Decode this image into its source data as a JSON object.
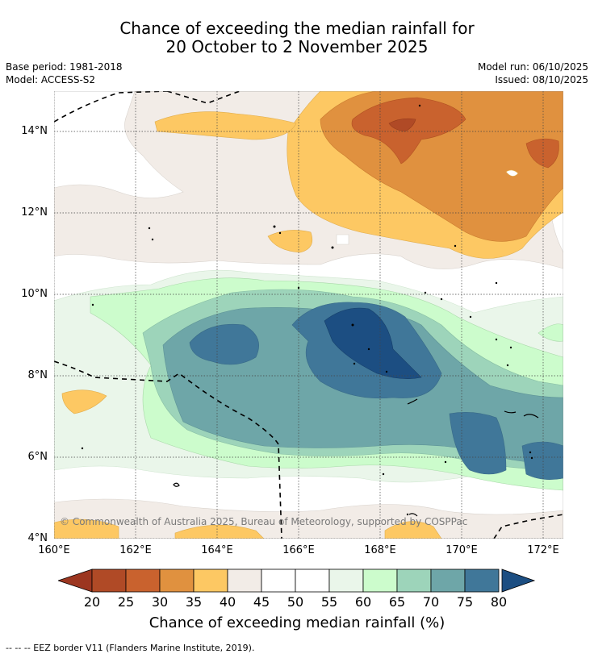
{
  "title_line1": "Chance of exceeding the median rainfall for",
  "title_line2": "20 October to 2 November 2025",
  "base_period": "Base period: 1981-2018",
  "model": "Model: ACCESS-S2",
  "model_run": "Model run: 06/10/2025",
  "issued": "Issued: 08/10/2025",
  "copyright": "© Commonwealth of Australia 2025, Bureau of Meteorology, supported by COSPPac",
  "footer": "--  --  -- EEZ border V11 (Flanders Marine Institute, 2019).",
  "axes": {
    "x_ticks": [
      "160°E",
      "162°E",
      "164°E",
      "166°E",
      "168°E",
      "170°E",
      "172°E"
    ],
    "y_ticks": [
      "14°N",
      "12°N",
      "10°N",
      "8°N",
      "6°N",
      "4°N"
    ]
  },
  "colorbar": {
    "title": "Chance of exceeding median rainfall (%)",
    "labels": [
      "20",
      "25",
      "30",
      "35",
      "40",
      "45",
      "50",
      "55",
      "60",
      "65",
      "70",
      "75",
      "80"
    ],
    "colors": [
      "#b04a26",
      "#c9622e",
      "#e0913f",
      "#fdc863",
      "#f2ece7",
      "#ffffff",
      "#ffffff",
      "#eaf6ea",
      "#ccfccc",
      "#9dd4ba",
      "#6ea6a8",
      "#407799"
    ],
    "under_color": "#9c3620",
    "over_color": "#1c4e82"
  }
}
